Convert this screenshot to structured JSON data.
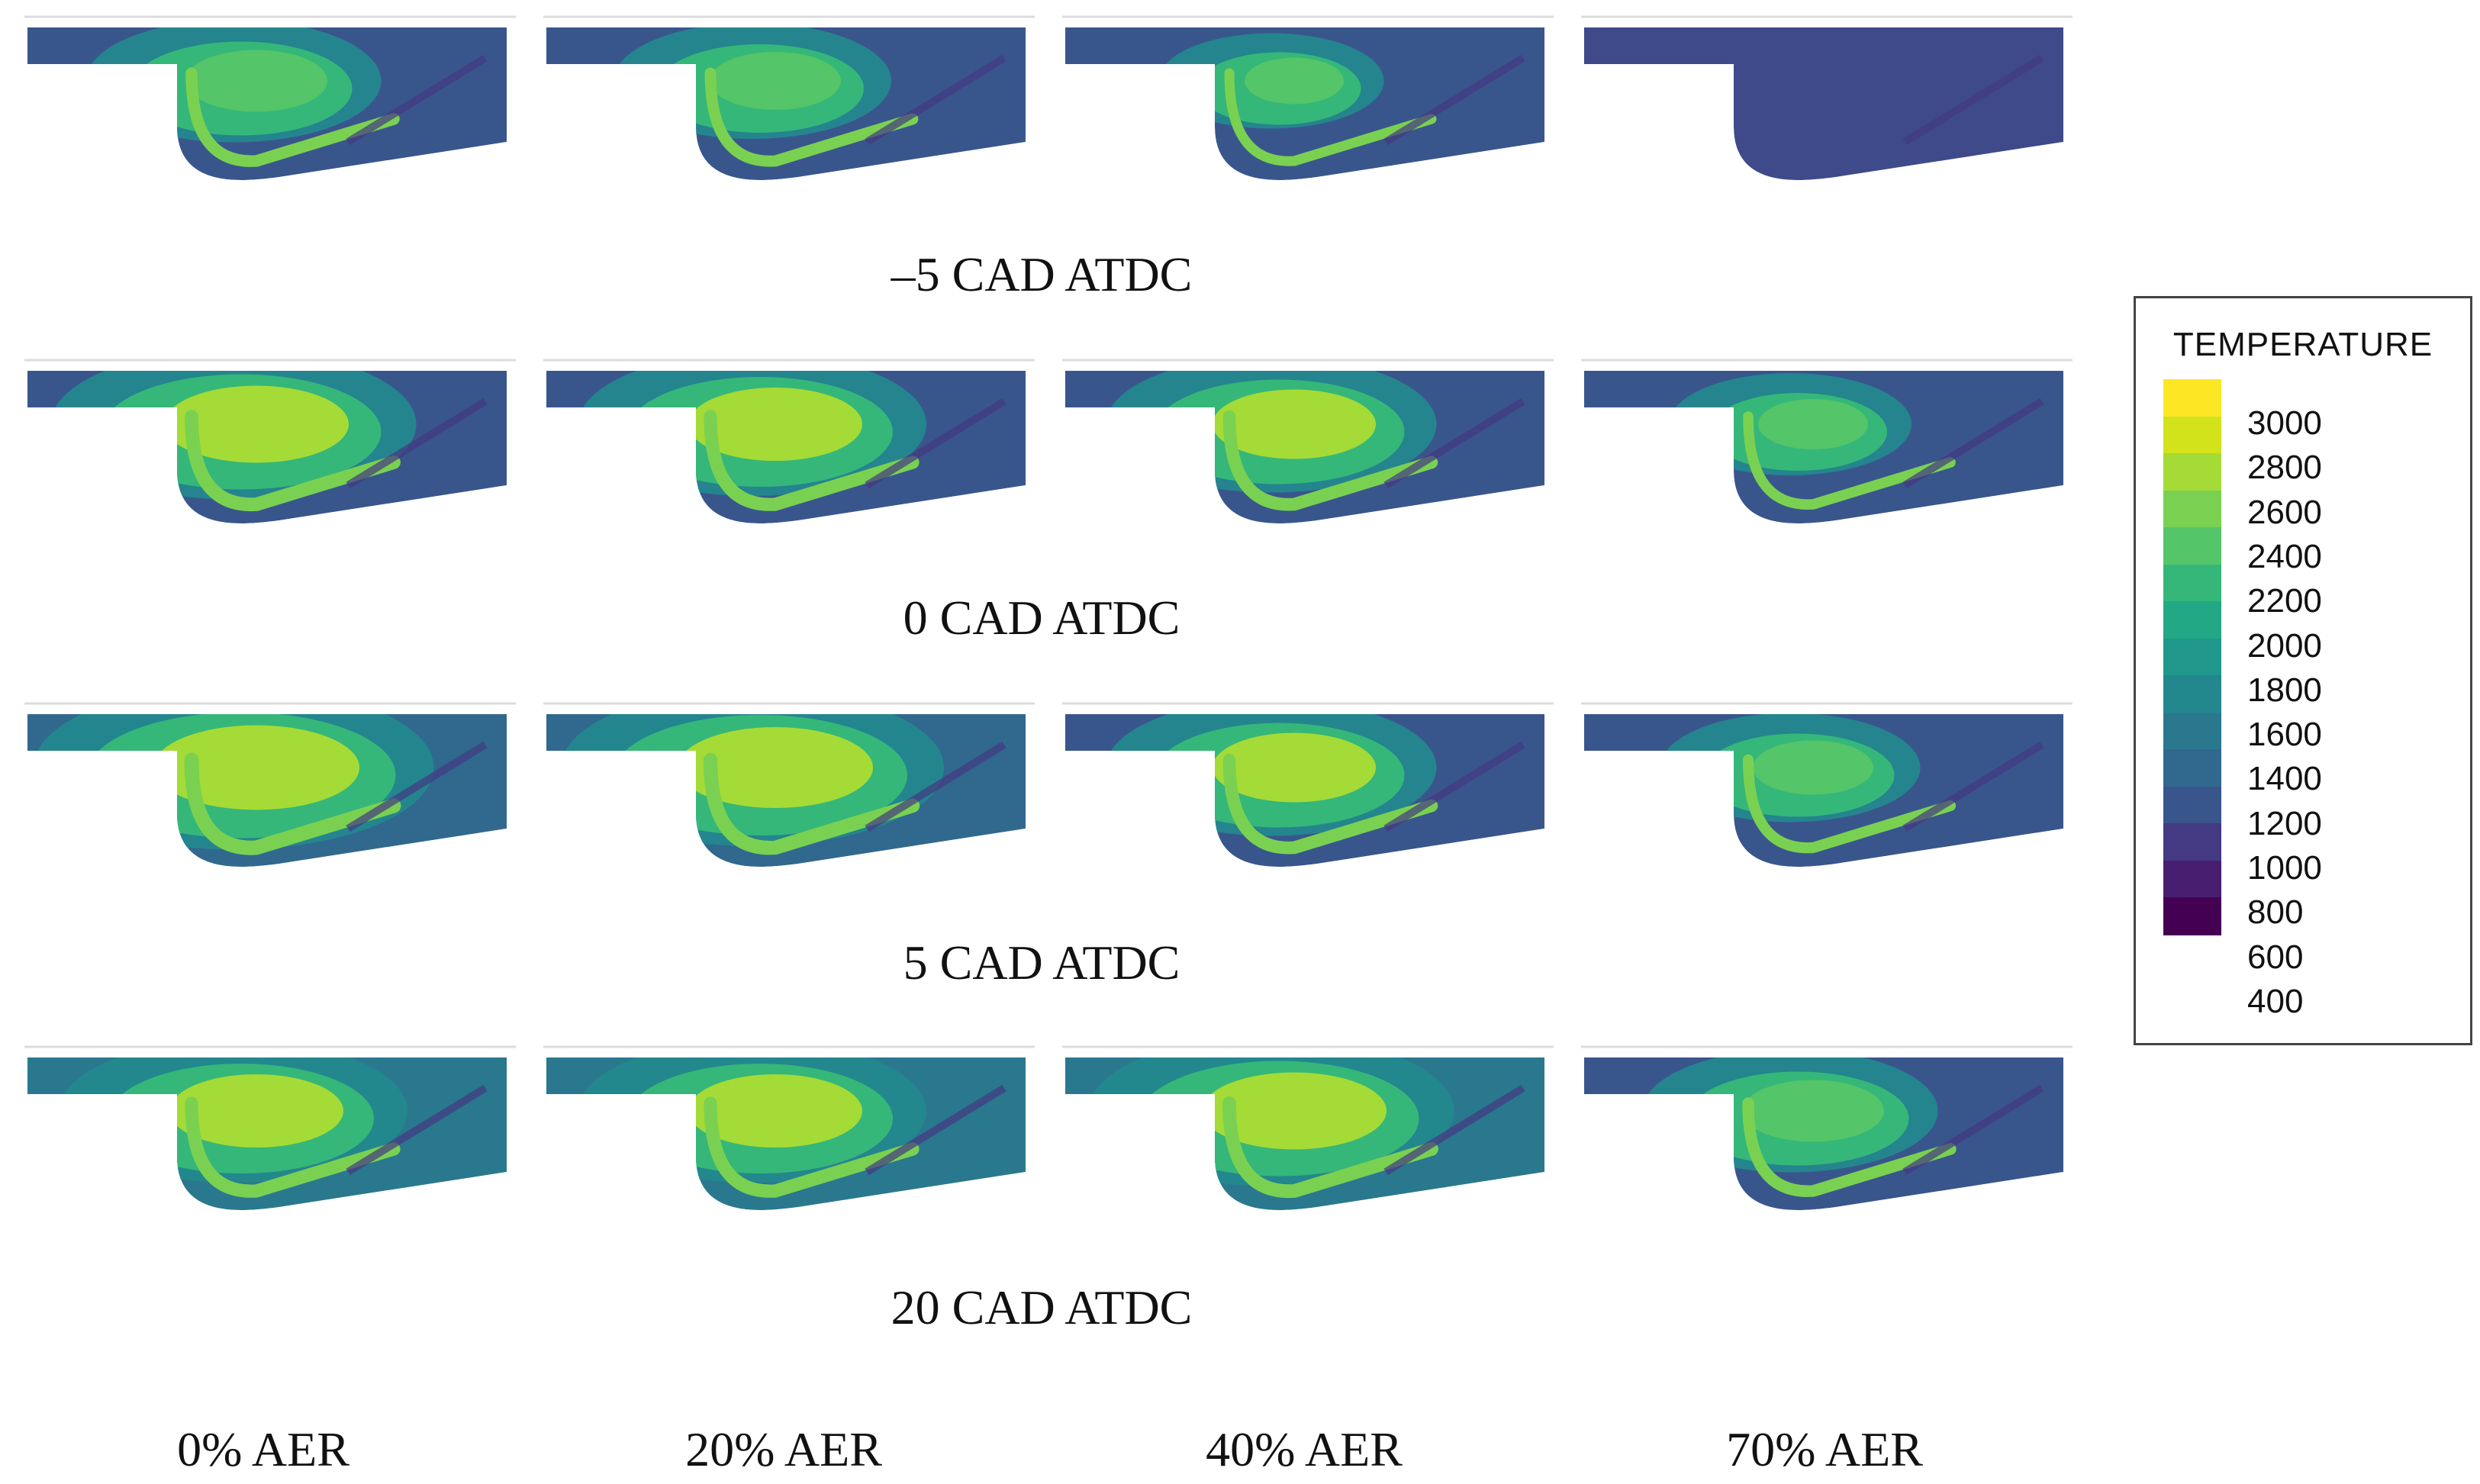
{
  "rows": [
    {
      "label": "–5 CAD ATDC"
    },
    {
      "label": "0 CAD ATDC"
    },
    {
      "label": "5 CAD ATDC"
    },
    {
      "label": "20 CAD ATDC"
    }
  ],
  "columns": [
    {
      "label": "0% AER"
    },
    {
      "label": "20% AER"
    },
    {
      "label": "40% AER"
    },
    {
      "label": "70% AER"
    }
  ],
  "legend": {
    "title": "TEMPERATURE",
    "ticks": [
      "3000",
      "2800",
      "2600",
      "2400",
      "2200",
      "2000",
      "1800",
      "1600",
      "1400",
      "1200",
      "1000",
      "800",
      "600",
      "400"
    ],
    "colors": [
      "#fde725",
      "#d2e21b",
      "#a5db36",
      "#7ad151",
      "#54c568",
      "#35b779",
      "#22a884",
      "#1f988b",
      "#23888e",
      "#2a788e",
      "#31688e",
      "#39568c",
      "#443983",
      "#481f70",
      "#440154"
    ]
  },
  "panels": [
    [
      {
        "bg": "#39568c",
        "fill": 0.45
      },
      {
        "bg": "#39568c",
        "fill": 0.4
      },
      {
        "bg": "#39568c",
        "fill": 0.25
      },
      {
        "bg": "#3e4a89",
        "fill": 0.0
      }
    ],
    [
      {
        "bg": "#39568c",
        "fill": 0.65
      },
      {
        "bg": "#39568c",
        "fill": 0.6
      },
      {
        "bg": "#39568c",
        "fill": 0.55
      },
      {
        "bg": "#39568c",
        "fill": 0.3
      }
    ],
    [
      {
        "bg": "#31688e",
        "fill": 0.75
      },
      {
        "bg": "#31688e",
        "fill": 0.7
      },
      {
        "bg": "#39568c",
        "fill": 0.55
      },
      {
        "bg": "#39568c",
        "fill": 0.35
      }
    ],
    [
      {
        "bg": "#2a788e",
        "fill": 0.6
      },
      {
        "bg": "#2a788e",
        "fill": 0.6
      },
      {
        "bg": "#2a788e",
        "fill": 0.65
      },
      {
        "bg": "#39568c",
        "fill": 0.45
      }
    ]
  ]
}
